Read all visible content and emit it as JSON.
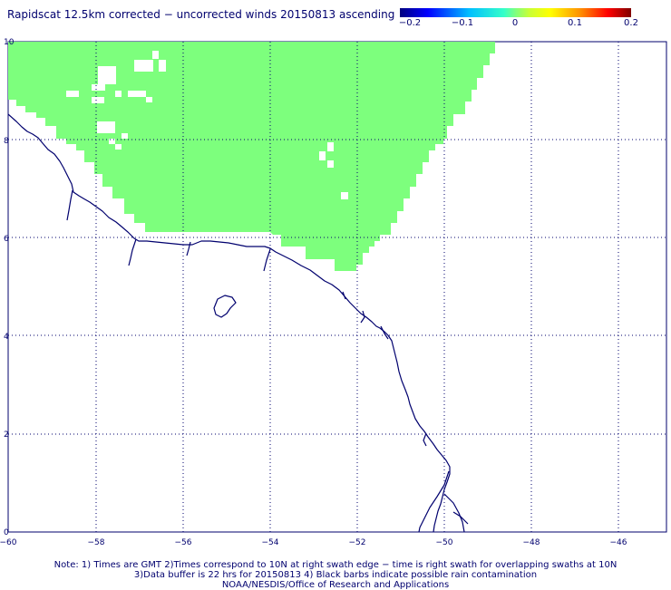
{
  "title": "Rapidscat 12.5km corrected − uncorrected winds 20150813 ascending",
  "colorbar": {
    "ticks": [
      "−0.2",
      "−0.1",
      "0",
      "0.1",
      "0.2"
    ],
    "tick_values": [
      -0.2,
      -0.1,
      0,
      0.1,
      0.2
    ],
    "colors": [
      "#00007f",
      "#0000ff",
      "#00bfff",
      "#7fff7f",
      "#ffff00",
      "#ff9000",
      "#ff0000",
      "#7f0000"
    ]
  },
  "map": {
    "lon_range": [
      -60,
      -45
    ],
    "lat_range": [
      0,
      10
    ],
    "x_ticks": [
      "−60",
      "−58",
      "−56",
      "−54",
      "−52",
      "−50",
      "−48",
      "−46"
    ],
    "x_tick_values": [
      -60,
      -58,
      -56,
      -54,
      -52,
      -50,
      -48,
      -46
    ],
    "y_ticks": [
      "0",
      "2",
      "4",
      "6",
      "8",
      "10"
    ],
    "y_tick_values": [
      0,
      2,
      4,
      6,
      8,
      10
    ],
    "grid": "dotted",
    "swath_color": "#7dff7d",
    "coast_color": "#00006e"
  },
  "notes": [
    "Note: 1) Times are GMT 2)Times correspond to 10N at right swath edge − time is right swath for overlapping swaths at 10N",
    "3)Data buffer is 22 hrs for 20150813 4) Black barbs indicate possible rain contamination",
    "NOAA/NESDIS/Office of Research and Applications"
  ]
}
